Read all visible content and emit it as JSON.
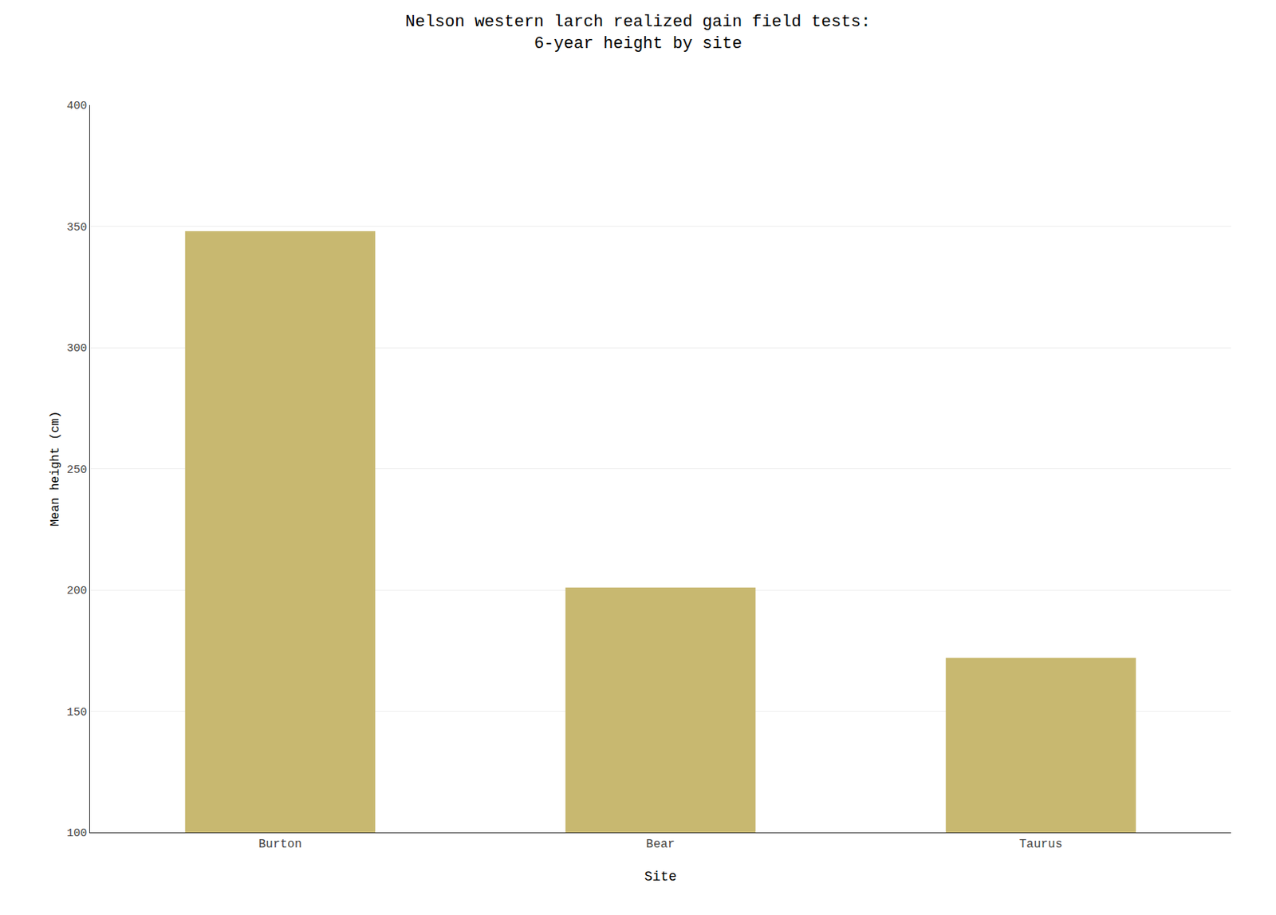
{
  "chart_data": {
    "type": "bar",
    "title": "Nelson western larch realized gain field tests:",
    "subtitle": "6-year height by site",
    "xlabel": "Site",
    "ylabel": "Mean height (cm)",
    "categories": [
      "Burton",
      "Bear",
      "Taurus"
    ],
    "values": [
      348,
      201,
      172
    ],
    "color": "#c8b870",
    "ylim": [
      100,
      400
    ],
    "yticks": [
      100,
      150,
      200,
      250,
      300,
      350,
      400
    ],
    "grid": true
  }
}
